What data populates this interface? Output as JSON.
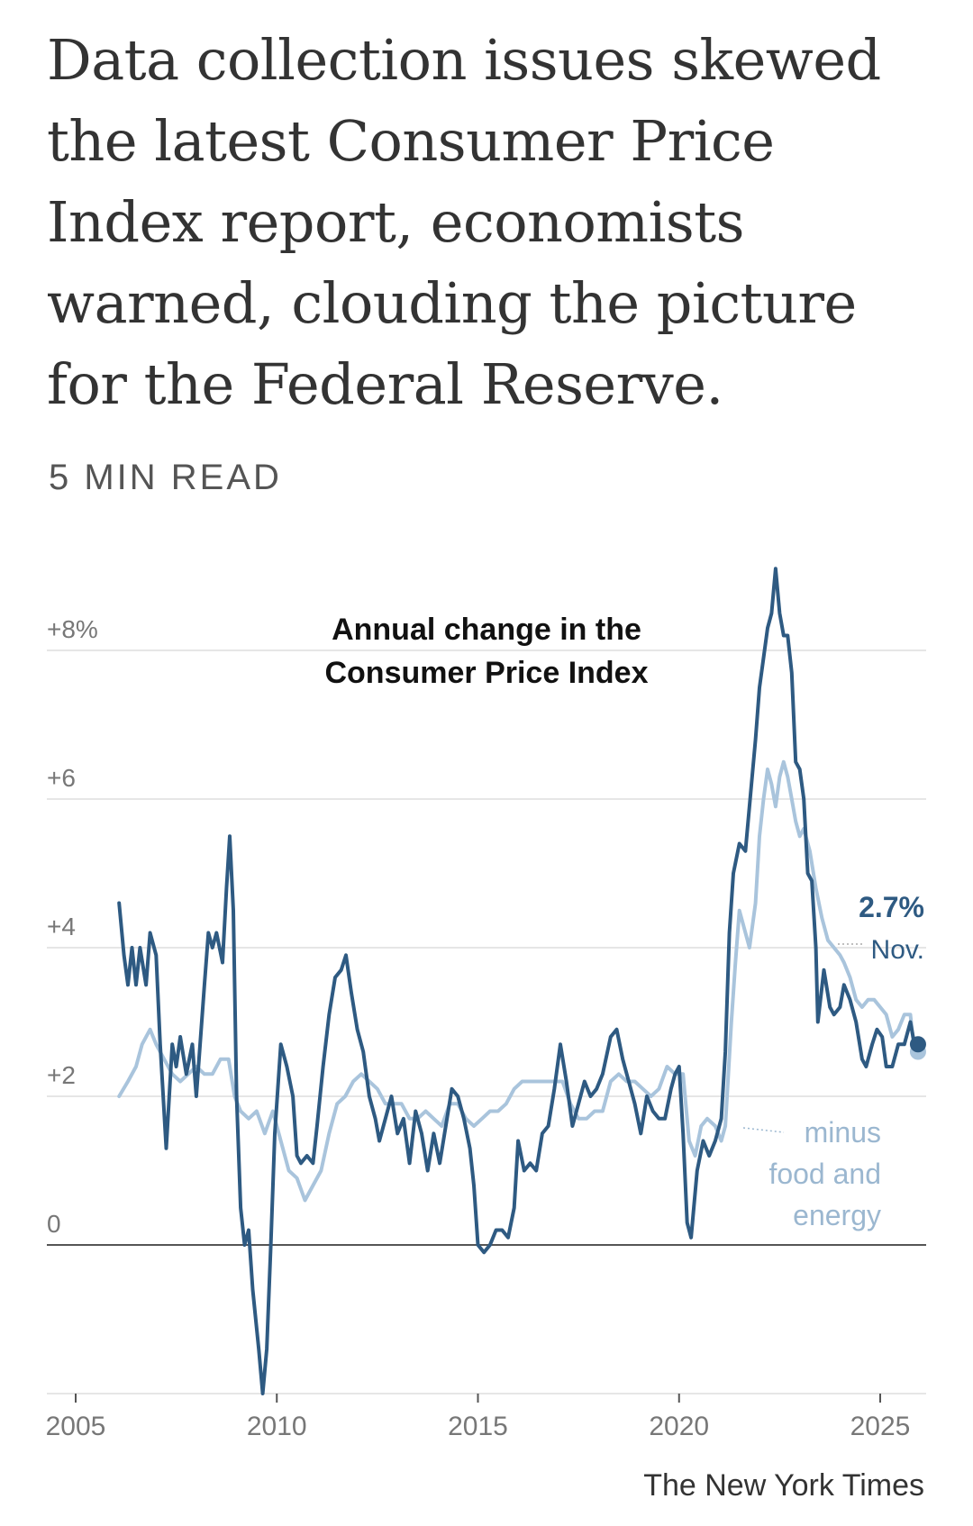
{
  "article": {
    "headline": "Data collection issues skewed the latest Consumer Price Index report, economists warned, clouding the picture for the Federal Reserve.",
    "read_time": "5 MIN READ"
  },
  "credit": "The New York Times",
  "colors": {
    "headline": "#333333",
    "cpi_line": "#2e5a82",
    "core_line": "#a9c4dc",
    "grid": "#dddddd",
    "zero_line": "#555555",
    "tick_label": "#777777",
    "core_label": "#9bb7d0"
  },
  "chart_data": {
    "type": "line",
    "title": "Annual change in the Consumer Price Index",
    "title_lines": [
      "Annual change in the",
      "Consumer Price Index"
    ],
    "xlim": [
      2005,
      2025.75
    ],
    "ylim": [
      -2,
      9
    ],
    "x_ticks": [
      2005,
      2010,
      2015,
      2020,
      2025
    ],
    "x_tick_labels": [
      "2005",
      "2010",
      "2015",
      "2020",
      "2025"
    ],
    "y_ticks": [
      0,
      2,
      4,
      6,
      8
    ],
    "y_tick_labels": [
      "0",
      "+2",
      "+4",
      "+6",
      "+8%"
    ],
    "grid": true,
    "series": [
      {
        "key": "cpi",
        "points": [
          [
            2006.08,
            4.6
          ],
          [
            2006.2,
            3.9
          ],
          [
            2006.3,
            3.5
          ],
          [
            2006.4,
            4.0
          ],
          [
            2006.5,
            3.5
          ],
          [
            2006.6,
            4.0
          ],
          [
            2006.75,
            3.5
          ],
          [
            2006.85,
            4.2
          ],
          [
            2007.0,
            3.9
          ],
          [
            2007.1,
            2.7
          ],
          [
            2007.25,
            1.3
          ],
          [
            2007.4,
            2.7
          ],
          [
            2007.5,
            2.4
          ],
          [
            2007.6,
            2.8
          ],
          [
            2007.75,
            2.3
          ],
          [
            2007.9,
            2.7
          ],
          [
            2008.0,
            2.0
          ],
          [
            2008.2,
            3.5
          ],
          [
            2008.3,
            4.2
          ],
          [
            2008.4,
            4.0
          ],
          [
            2008.5,
            4.2
          ],
          [
            2008.65,
            3.8
          ],
          [
            2008.75,
            4.8
          ],
          [
            2008.83,
            5.5
          ],
          [
            2008.92,
            4.5
          ],
          [
            2009.0,
            2.0
          ],
          [
            2009.1,
            0.5
          ],
          [
            2009.2,
            0.0
          ],
          [
            2009.3,
            0.2
          ],
          [
            2009.4,
            -0.6
          ],
          [
            2009.55,
            -1.4
          ],
          [
            2009.65,
            -2.0
          ],
          [
            2009.75,
            -1.4
          ],
          [
            2009.85,
            0.0
          ],
          [
            2009.95,
            1.5
          ],
          [
            2010.1,
            2.7
          ],
          [
            2010.25,
            2.4
          ],
          [
            2010.4,
            2.0
          ],
          [
            2010.5,
            1.2
          ],
          [
            2010.6,
            1.1
          ],
          [
            2010.75,
            1.2
          ],
          [
            2010.9,
            1.1
          ],
          [
            2011.0,
            1.6
          ],
          [
            2011.15,
            2.4
          ],
          [
            2011.3,
            3.1
          ],
          [
            2011.45,
            3.6
          ],
          [
            2011.6,
            3.7
          ],
          [
            2011.72,
            3.9
          ],
          [
            2011.85,
            3.4
          ],
          [
            2012.0,
            2.9
          ],
          [
            2012.15,
            2.6
          ],
          [
            2012.3,
            2.0
          ],
          [
            2012.45,
            1.7
          ],
          [
            2012.55,
            1.4
          ],
          [
            2012.7,
            1.7
          ],
          [
            2012.85,
            2.0
          ],
          [
            2013.0,
            1.5
          ],
          [
            2013.15,
            1.7
          ],
          [
            2013.3,
            1.1
          ],
          [
            2013.45,
            1.8
          ],
          [
            2013.6,
            1.5
          ],
          [
            2013.75,
            1.0
          ],
          [
            2013.9,
            1.5
          ],
          [
            2014.05,
            1.1
          ],
          [
            2014.2,
            1.6
          ],
          [
            2014.35,
            2.1
          ],
          [
            2014.5,
            2.0
          ],
          [
            2014.65,
            1.7
          ],
          [
            2014.8,
            1.3
          ],
          [
            2014.9,
            0.8
          ],
          [
            2015.0,
            0.0
          ],
          [
            2015.15,
            -0.1
          ],
          [
            2015.3,
            0.0
          ],
          [
            2015.45,
            0.2
          ],
          [
            2015.6,
            0.2
          ],
          [
            2015.75,
            0.1
          ],
          [
            2015.9,
            0.5
          ],
          [
            2016.0,
            1.4
          ],
          [
            2016.15,
            1.0
          ],
          [
            2016.3,
            1.1
          ],
          [
            2016.45,
            1.0
          ],
          [
            2016.6,
            1.5
          ],
          [
            2016.75,
            1.6
          ],
          [
            2016.9,
            2.1
          ],
          [
            2017.05,
            2.7
          ],
          [
            2017.2,
            2.2
          ],
          [
            2017.35,
            1.6
          ],
          [
            2017.5,
            1.9
          ],
          [
            2017.65,
            2.2
          ],
          [
            2017.8,
            2.0
          ],
          [
            2017.95,
            2.1
          ],
          [
            2018.1,
            2.3
          ],
          [
            2018.3,
            2.8
          ],
          [
            2018.45,
            2.9
          ],
          [
            2018.6,
            2.5
          ],
          [
            2018.75,
            2.2
          ],
          [
            2018.9,
            1.9
          ],
          [
            2019.05,
            1.5
          ],
          [
            2019.2,
            2.0
          ],
          [
            2019.35,
            1.8
          ],
          [
            2019.5,
            1.7
          ],
          [
            2019.65,
            1.7
          ],
          [
            2019.8,
            2.1
          ],
          [
            2019.9,
            2.3
          ],
          [
            2020.0,
            2.4
          ],
          [
            2020.1,
            1.5
          ],
          [
            2020.2,
            0.3
          ],
          [
            2020.3,
            0.1
          ],
          [
            2020.45,
            1.0
          ],
          [
            2020.6,
            1.4
          ],
          [
            2020.75,
            1.2
          ],
          [
            2020.9,
            1.4
          ],
          [
            2021.05,
            1.7
          ],
          [
            2021.15,
            2.6
          ],
          [
            2021.25,
            4.2
          ],
          [
            2021.35,
            5.0
          ],
          [
            2021.5,
            5.4
          ],
          [
            2021.65,
            5.3
          ],
          [
            2021.8,
            6.2
          ],
          [
            2021.9,
            6.8
          ],
          [
            2022.0,
            7.5
          ],
          [
            2022.1,
            7.9
          ],
          [
            2022.2,
            8.3
          ],
          [
            2022.3,
            8.5
          ],
          [
            2022.4,
            9.1
          ],
          [
            2022.5,
            8.5
          ],
          [
            2022.6,
            8.2
          ],
          [
            2022.7,
            8.2
          ],
          [
            2022.8,
            7.7
          ],
          [
            2022.9,
            6.5
          ],
          [
            2023.0,
            6.4
          ],
          [
            2023.1,
            6.0
          ],
          [
            2023.2,
            5.0
          ],
          [
            2023.3,
            4.9
          ],
          [
            2023.4,
            4.0
          ],
          [
            2023.45,
            3.0
          ],
          [
            2023.6,
            3.7
          ],
          [
            2023.75,
            3.2
          ],
          [
            2023.85,
            3.1
          ],
          [
            2024.0,
            3.2
          ],
          [
            2024.1,
            3.5
          ],
          [
            2024.25,
            3.3
          ],
          [
            2024.4,
            3.0
          ],
          [
            2024.55,
            2.5
          ],
          [
            2024.65,
            2.4
          ],
          [
            2024.8,
            2.7
          ],
          [
            2024.92,
            2.9
          ],
          [
            2025.05,
            2.8
          ],
          [
            2025.15,
            2.4
          ],
          [
            2025.3,
            2.4
          ],
          [
            2025.45,
            2.7
          ],
          [
            2025.6,
            2.7
          ],
          [
            2025.75,
            3.0
          ],
          [
            2025.85,
            2.7
          ]
        ]
      },
      {
        "key": "core",
        "name": "minus food and energy",
        "points": [
          [
            2006.08,
            2.0
          ],
          [
            2006.3,
            2.2
          ],
          [
            2006.5,
            2.4
          ],
          [
            2006.65,
            2.7
          ],
          [
            2006.85,
            2.9
          ],
          [
            2007.0,
            2.7
          ],
          [
            2007.2,
            2.5
          ],
          [
            2007.4,
            2.3
          ],
          [
            2007.6,
            2.2
          ],
          [
            2007.8,
            2.3
          ],
          [
            2008.0,
            2.4
          ],
          [
            2008.2,
            2.3
          ],
          [
            2008.4,
            2.3
          ],
          [
            2008.6,
            2.5
          ],
          [
            2008.8,
            2.5
          ],
          [
            2008.95,
            2.0
          ],
          [
            2009.1,
            1.8
          ],
          [
            2009.3,
            1.7
          ],
          [
            2009.5,
            1.8
          ],
          [
            2009.7,
            1.5
          ],
          [
            2009.9,
            1.8
          ],
          [
            2010.1,
            1.4
          ],
          [
            2010.3,
            1.0
          ],
          [
            2010.5,
            0.9
          ],
          [
            2010.7,
            0.6
          ],
          [
            2010.9,
            0.8
          ],
          [
            2011.1,
            1.0
          ],
          [
            2011.3,
            1.5
          ],
          [
            2011.5,
            1.9
          ],
          [
            2011.7,
            2.0
          ],
          [
            2011.9,
            2.2
          ],
          [
            2012.1,
            2.3
          ],
          [
            2012.3,
            2.2
          ],
          [
            2012.5,
            2.1
          ],
          [
            2012.7,
            1.9
          ],
          [
            2012.9,
            1.9
          ],
          [
            2013.1,
            1.9
          ],
          [
            2013.3,
            1.7
          ],
          [
            2013.5,
            1.7
          ],
          [
            2013.7,
            1.8
          ],
          [
            2013.9,
            1.7
          ],
          [
            2014.1,
            1.6
          ],
          [
            2014.3,
            1.9
          ],
          [
            2014.5,
            1.9
          ],
          [
            2014.7,
            1.7
          ],
          [
            2014.9,
            1.6
          ],
          [
            2015.1,
            1.7
          ],
          [
            2015.3,
            1.8
          ],
          [
            2015.5,
            1.8
          ],
          [
            2015.7,
            1.9
          ],
          [
            2015.9,
            2.1
          ],
          [
            2016.1,
            2.2
          ],
          [
            2016.3,
            2.2
          ],
          [
            2016.5,
            2.2
          ],
          [
            2016.7,
            2.2
          ],
          [
            2016.9,
            2.2
          ],
          [
            2017.1,
            2.2
          ],
          [
            2017.3,
            1.9
          ],
          [
            2017.5,
            1.7
          ],
          [
            2017.7,
            1.7
          ],
          [
            2017.9,
            1.8
          ],
          [
            2018.1,
            1.8
          ],
          [
            2018.3,
            2.2
          ],
          [
            2018.5,
            2.3
          ],
          [
            2018.7,
            2.2
          ],
          [
            2018.9,
            2.2
          ],
          [
            2019.1,
            2.1
          ],
          [
            2019.3,
            2.0
          ],
          [
            2019.5,
            2.1
          ],
          [
            2019.7,
            2.4
          ],
          [
            2019.9,
            2.3
          ],
          [
            2020.1,
            2.3
          ],
          [
            2020.25,
            1.4
          ],
          [
            2020.4,
            1.2
          ],
          [
            2020.55,
            1.6
          ],
          [
            2020.7,
            1.7
          ],
          [
            2020.9,
            1.6
          ],
          [
            2021.05,
            1.4
          ],
          [
            2021.15,
            1.6
          ],
          [
            2021.3,
            3.0
          ],
          [
            2021.4,
            3.8
          ],
          [
            2021.5,
            4.5
          ],
          [
            2021.6,
            4.3
          ],
          [
            2021.75,
            4.0
          ],
          [
            2021.9,
            4.6
          ],
          [
            2022.0,
            5.5
          ],
          [
            2022.1,
            6.0
          ],
          [
            2022.2,
            6.4
          ],
          [
            2022.3,
            6.2
          ],
          [
            2022.4,
            5.9
          ],
          [
            2022.5,
            6.3
          ],
          [
            2022.6,
            6.5
          ],
          [
            2022.7,
            6.3
          ],
          [
            2022.8,
            6.0
          ],
          [
            2022.9,
            5.7
          ],
          [
            2023.0,
            5.5
          ],
          [
            2023.1,
            5.6
          ],
          [
            2023.25,
            5.3
          ],
          [
            2023.4,
            4.8
          ],
          [
            2023.55,
            4.4
          ],
          [
            2023.7,
            4.1
          ],
          [
            2023.85,
            4.0
          ],
          [
            2024.0,
            3.9
          ],
          [
            2024.1,
            3.8
          ],
          [
            2024.25,
            3.6
          ],
          [
            2024.4,
            3.3
          ],
          [
            2024.55,
            3.2
          ],
          [
            2024.7,
            3.3
          ],
          [
            2024.85,
            3.3
          ],
          [
            2025.0,
            3.2
          ],
          [
            2025.15,
            3.1
          ],
          [
            2025.3,
            2.8
          ],
          [
            2025.45,
            2.9
          ],
          [
            2025.6,
            3.1
          ],
          [
            2025.75,
            3.1
          ],
          [
            2025.85,
            2.6
          ]
        ]
      }
    ],
    "end_labels": {
      "cpi_value": "2.7%",
      "cpi_period": "Nov.",
      "core_lines": [
        "minus",
        "food and",
        "energy"
      ]
    }
  }
}
